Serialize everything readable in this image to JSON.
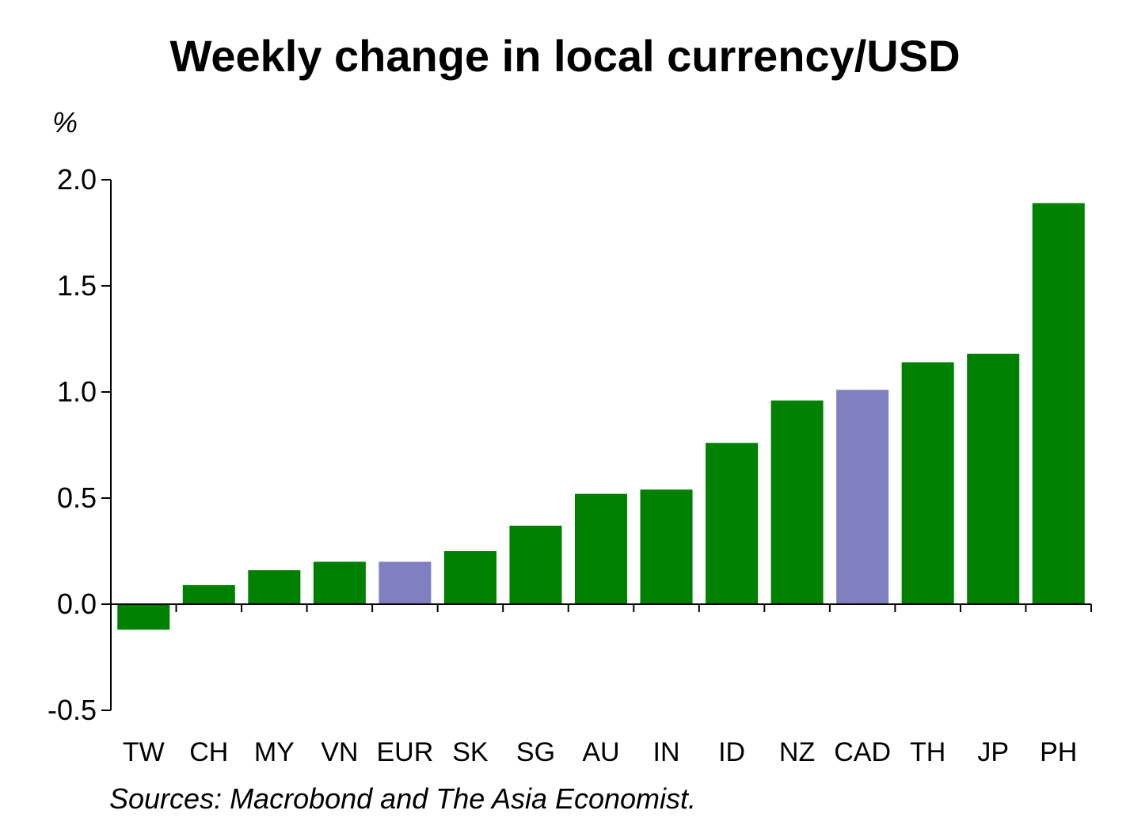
{
  "chart_data": {
    "type": "bar",
    "title": "Weekly change in local currency/USD",
    "ylabel": "%",
    "xlabel": "",
    "source": "Sources: Macrobond and The Asia Economist.",
    "ylim": [
      -0.5,
      2.0
    ],
    "yticks": [
      "-0.5",
      "0.0",
      "0.5",
      "1.0",
      "1.5",
      "2.0"
    ],
    "ytick_values": [
      -0.5,
      0.0,
      0.5,
      1.0,
      1.5,
      2.0
    ],
    "categories": [
      "TW",
      "CH",
      "MY",
      "VN",
      "EUR",
      "SK",
      "SG",
      "AU",
      "IN",
      "ID",
      "NZ",
      "CAD",
      "TH",
      "JP",
      "PH"
    ],
    "values": [
      -0.12,
      0.09,
      0.16,
      0.2,
      0.2,
      0.25,
      0.37,
      0.52,
      0.54,
      0.76,
      0.96,
      1.01,
      1.14,
      1.18,
      1.89
    ],
    "highlight": [
      false,
      false,
      false,
      false,
      true,
      false,
      false,
      false,
      false,
      false,
      false,
      true,
      false,
      false,
      false
    ],
    "colors": {
      "default": "#008000",
      "highlight": "#8080C0",
      "axis": "#000000"
    },
    "grid": false,
    "legend": "none"
  }
}
